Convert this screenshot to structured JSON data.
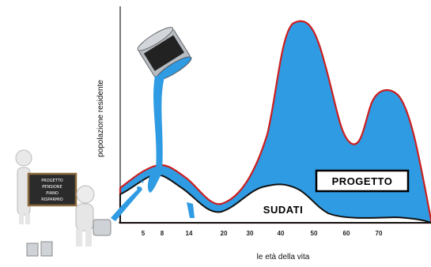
{
  "chart_data": {
    "type": "area",
    "xlabel": "le età della vita",
    "ylabel": "popolazione residente",
    "x_ticks": [
      "5",
      "8",
      "14",
      "20",
      "30",
      "40",
      "50",
      "60",
      "70"
    ],
    "series": [
      {
        "name": "PROGETTO",
        "color": "#2f9be3",
        "stroke": "#cc1f1f"
      },
      {
        "name": "SUDATI",
        "color": "#ffffff",
        "stroke": "#111111"
      }
    ]
  },
  "labels": {
    "progetto": "PROGETTO",
    "sudati": "SUDATI"
  },
  "chalkboard": {
    "lines": [
      "PROGETTO",
      "PENSIONE",
      "PIANO",
      "RISPARMIO"
    ]
  },
  "colors": {
    "paint": "#2f9be3",
    "outline": "#cc1f1f",
    "axis": "#222222"
  }
}
